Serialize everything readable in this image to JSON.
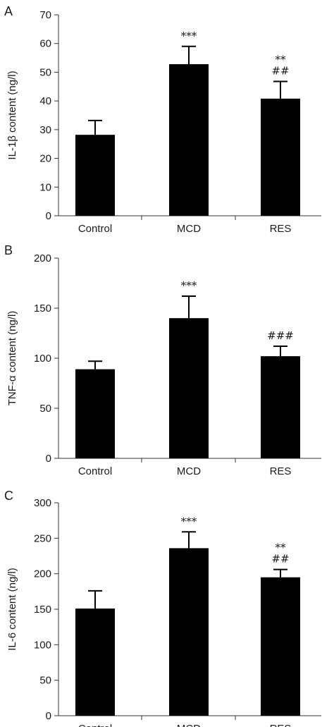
{
  "chart_data": [
    {
      "type": "bar",
      "panel_label": "A",
      "ylabel": "IL-1β content (ng/l)",
      "ylim": [
        0,
        70
      ],
      "yticks": [
        0,
        10,
        20,
        30,
        40,
        50,
        60,
        70
      ],
      "categories": [
        "Control",
        "MCD",
        "RES"
      ],
      "values": [
        28.2,
        52.8,
        40.8
      ],
      "errors": [
        5.0,
        6.2,
        6.0
      ],
      "annotations": [
        [],
        [
          "***"
        ],
        [
          "**",
          "##"
        ]
      ],
      "bar_color": "#000000"
    },
    {
      "type": "bar",
      "panel_label": "B",
      "ylabel": "TNF-α content (ng/l)",
      "ylim": [
        0,
        200
      ],
      "yticks": [
        0,
        50,
        100,
        150,
        200
      ],
      "categories": [
        "Control",
        "MCD",
        "RES"
      ],
      "values": [
        89,
        140,
        102
      ],
      "errors": [
        8,
        22,
        10
      ],
      "annotations": [
        [],
        [
          "***"
        ],
        [
          "###"
        ]
      ],
      "bar_color": "#000000"
    },
    {
      "type": "bar",
      "panel_label": "C",
      "ylabel": "IL-6 content (ng/l)",
      "ylim": [
        0,
        300
      ],
      "yticks": [
        0,
        50,
        100,
        150,
        200,
        250,
        300
      ],
      "categories": [
        "Control",
        "MCD",
        "RES"
      ],
      "values": [
        151,
        236,
        195
      ],
      "errors": [
        25,
        23,
        11
      ],
      "annotations": [
        [],
        [
          "***"
        ],
        [
          "**",
          "##"
        ]
      ],
      "bar_color": "#000000"
    }
  ]
}
